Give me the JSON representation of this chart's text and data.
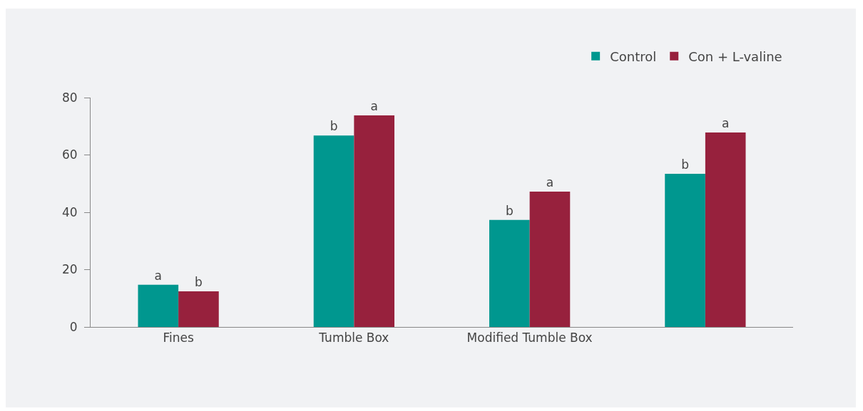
{
  "chart_data": {
    "type": "bar",
    "categories": [
      "Fines",
      "Tumble Box",
      "Modified Tumble Box",
      null
    ],
    "series": [
      {
        "name": "Control",
        "color": "#00978f",
        "values": [
          14.7,
          66.8,
          37.3,
          53.4
        ],
        "value_labels": [
          "a",
          "b",
          "b",
          "b"
        ]
      },
      {
        "name": "Con + L-valine",
        "color": "#97213d",
        "values": [
          12.4,
          73.8,
          47.2,
          67.8
        ],
        "value_labels": [
          "b",
          "a",
          "a",
          "a"
        ]
      }
    ],
    "ylim": [
      0,
      80
    ],
    "yticks": [
      0,
      20,
      40,
      60,
      80
    ],
    "grid": false,
    "legend": "top right"
  }
}
